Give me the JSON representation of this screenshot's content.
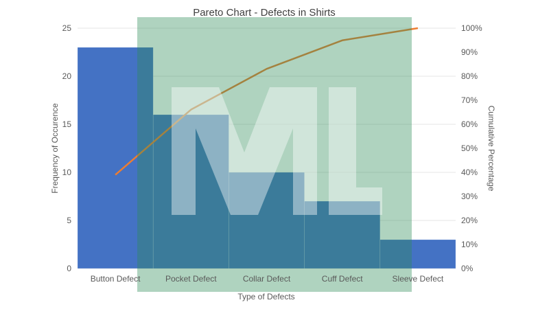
{
  "chart_data": {
    "type": "bar",
    "title": "Pareto Chart - Defects in Shirts",
    "xlabel": "Type of Defects",
    "ylabel": "Frequency of Occurence",
    "y2label": "Cumulative Percentage",
    "categories": [
      "Button Defect",
      "Pocket Defect",
      "Collar Defect",
      "Cuff Defect",
      "Sleeve Defect"
    ],
    "series": [
      {
        "type": "bar",
        "axis": "left",
        "values": [
          23,
          16,
          10,
          7,
          3
        ],
        "color": "#4472c4"
      },
      {
        "type": "line",
        "axis": "right",
        "values": [
          38.98,
          66.1,
          83.05,
          94.92,
          100
        ],
        "color": "#ed7d31"
      }
    ],
    "ylim": [
      0,
      25
    ],
    "yticks": [
      "0",
      "5",
      "10",
      "15",
      "20",
      "25"
    ],
    "y2lim": [
      0,
      100
    ],
    "y2ticks": [
      "0%",
      "10%",
      "20%",
      "30%",
      "40%",
      "50%",
      "60%",
      "70%",
      "80%",
      "90%",
      "100%"
    ],
    "grid": true,
    "watermark": {
      "text": "ML",
      "background": "#2e8b57",
      "color": "#ffffff"
    }
  }
}
